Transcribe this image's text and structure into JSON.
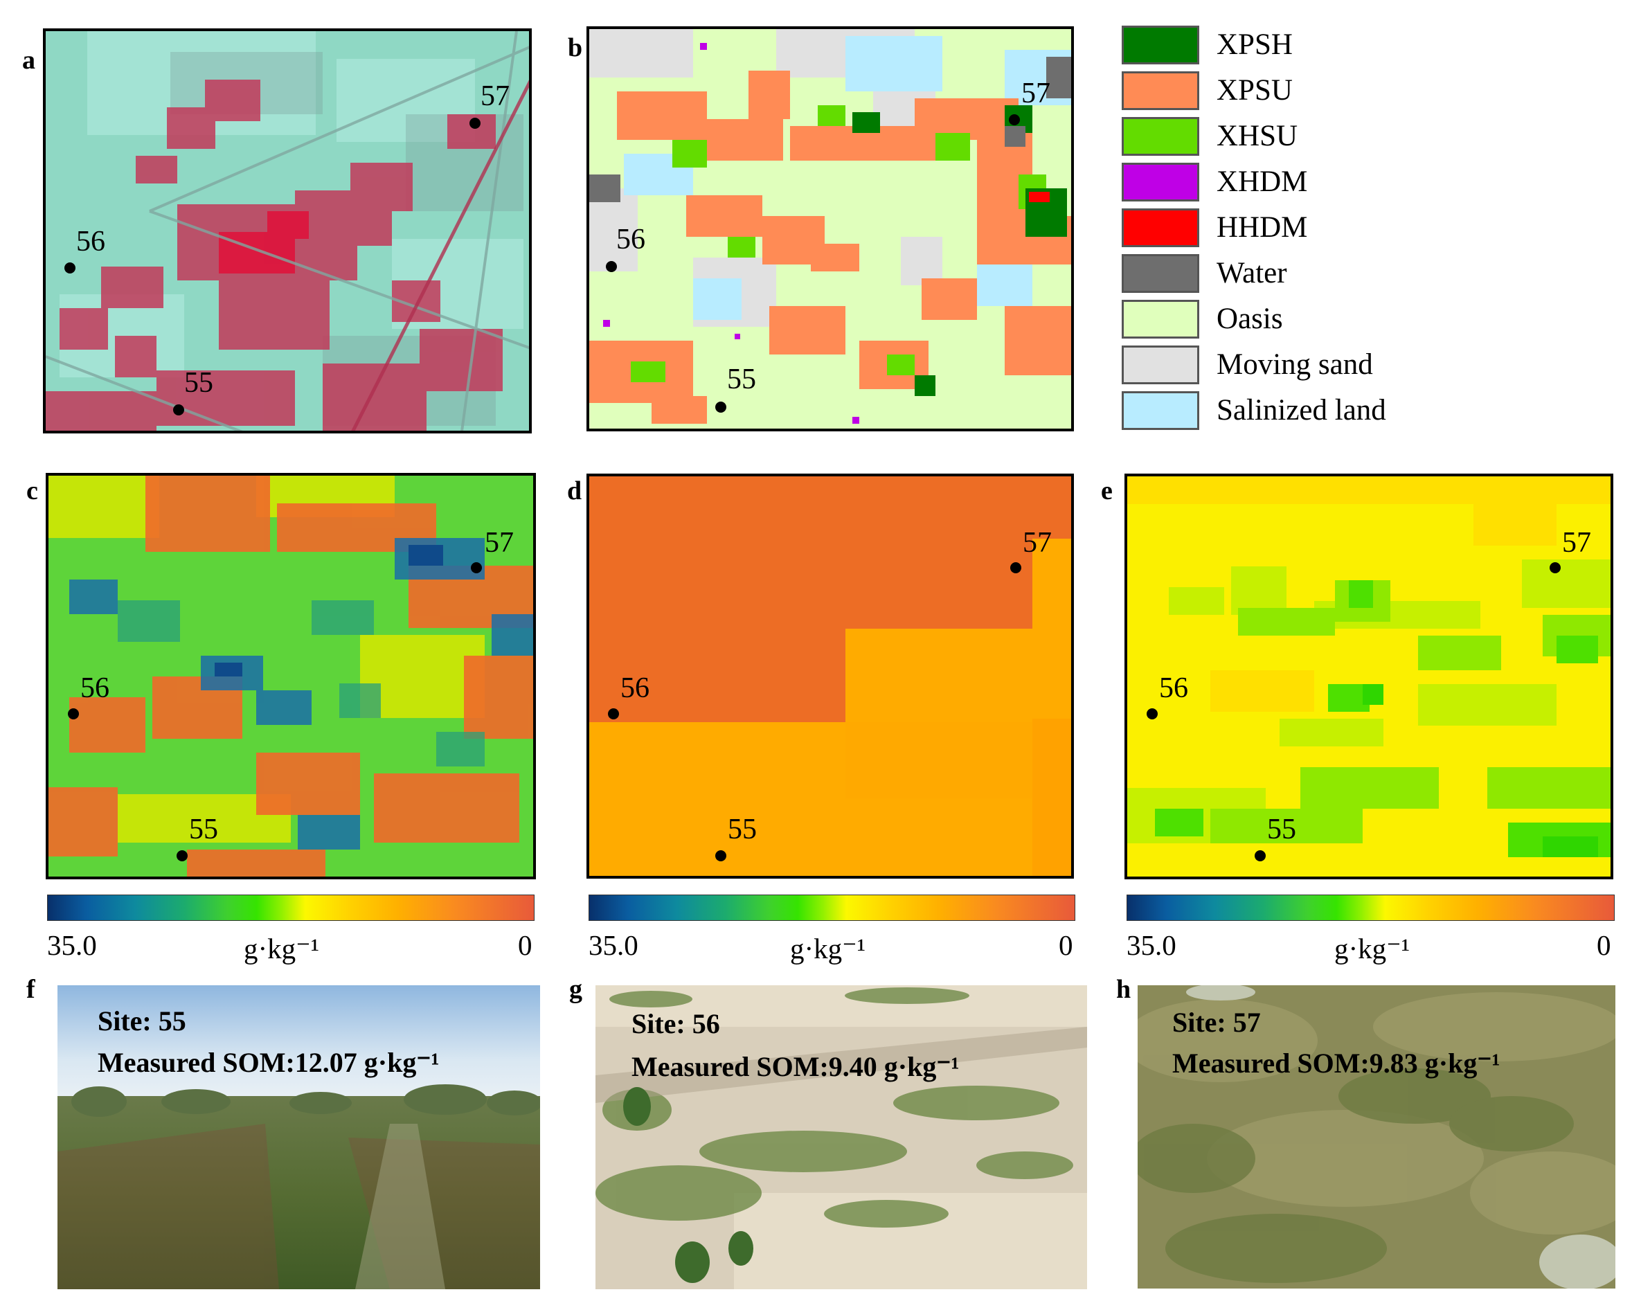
{
  "panel_labels": {
    "a": "a",
    "b": "b",
    "c": "c",
    "d": "d",
    "e": "e",
    "f": "f",
    "g": "g",
    "h": "h"
  },
  "sites": {
    "s55": "55",
    "s56": "56",
    "s57": "57"
  },
  "legend": {
    "items": [
      {
        "label": "XPSH",
        "color": "#007a00"
      },
      {
        "label": "XPSU",
        "color": "#ff8b55"
      },
      {
        "label": "XHSU",
        "color": "#63dc00"
      },
      {
        "label": "XHDM",
        "color": "#bf00e6"
      },
      {
        "label": "HHDM",
        "color": "#ff0000"
      },
      {
        "label": "Water",
        "color": "#6e6e6e"
      },
      {
        "label": "Oasis",
        "color": "#e0ffbc"
      },
      {
        "label": "Moving sand",
        "color": "#e1e1e1"
      },
      {
        "label": "Salinized land",
        "color": "#b8ecff"
      }
    ]
  },
  "colorbar": {
    "min_label": "35.0",
    "max_label": "0",
    "unit": "g·kg⁻¹"
  },
  "photos": [
    {
      "site": "Site: 55",
      "measured": "Measured SOM:12.07 g·kg⁻¹"
    },
    {
      "site": "Site: 56",
      "measured": "Measured SOM:9.40 g·kg⁻¹"
    },
    {
      "site": "Site: 57",
      "measured": "Measured SOM:9.83 g·kg⁻¹"
    }
  ]
}
